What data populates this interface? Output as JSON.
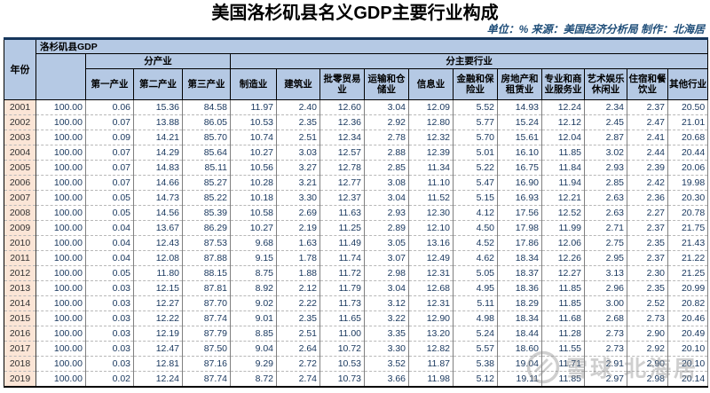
{
  "title": "美国洛杉矶县名义GDP主要行业构成",
  "meta": "单位：% 来源：美国经济分析局 制作：北海居",
  "watermark": {
    "text": "雪球 北海居"
  },
  "colors": {
    "header_bg": "#b5c9e4",
    "year_bg": "#fbe5d6",
    "data_text": "#17365d",
    "meta_text": "#1f4e79"
  },
  "chart_data": {
    "type": "table",
    "title": "美国洛杉矶县名义GDP主要行业构成",
    "unit": "%",
    "source": "美国经济分析局",
    "maker": "北海居",
    "corner_header": "年份",
    "top_group_header": "洛杉矶县GDP",
    "sector_group_header": "分产业",
    "industry_group_header": "分主要行业",
    "sector_columns": [
      "第一产业",
      "第二产业",
      "第三产业"
    ],
    "industry_columns": [
      "制造业",
      "建筑业",
      "批零贸易业",
      "运输和仓储业",
      "信息业",
      "金融和保险业",
      "房地产和租赁业",
      "专业和商业服务业",
      "艺术娱乐休闲业",
      "住宿和餐饮业",
      "其他行业"
    ],
    "rows": [
      {
        "year": "2001",
        "values": [
          "100.00",
          "0.06",
          "15.36",
          "84.58",
          "11.97",
          "2.40",
          "12.60",
          "3.04",
          "12.09",
          "5.52",
          "14.93",
          "12.24",
          "2.34",
          "2.37",
          "20.50"
        ]
      },
      {
        "year": "2002",
        "values": [
          "100.00",
          "0.07",
          "13.88",
          "86.05",
          "10.53",
          "2.35",
          "12.36",
          "2.92",
          "12.80",
          "5.77",
          "15.24",
          "12.12",
          "2.45",
          "2.47",
          "21.01"
        ]
      },
      {
        "year": "2003",
        "values": [
          "100.00",
          "0.09",
          "14.21",
          "85.70",
          "10.74",
          "2.51",
          "12.34",
          "2.78",
          "12.32",
          "5.70",
          "15.61",
          "12.04",
          "2.87",
          "2.41",
          "20.68"
        ]
      },
      {
        "year": "2004",
        "values": [
          "100.00",
          "0.07",
          "14.29",
          "85.64",
          "10.27",
          "3.03",
          "12.57",
          "2.88",
          "12.39",
          "5.01",
          "16.10",
          "11.85",
          "3.02",
          "2.44",
          "20.44"
        ]
      },
      {
        "year": "2005",
        "values": [
          "100.00",
          "0.07",
          "14.83",
          "85.11",
          "10.56",
          "3.27",
          "12.78",
          "2.85",
          "11.34",
          "5.22",
          "16.75",
          "11.84",
          "2.93",
          "2.39",
          "20.06"
        ]
      },
      {
        "year": "2006",
        "values": [
          "100.00",
          "0.07",
          "14.66",
          "85.27",
          "10.28",
          "3.21",
          "12.77",
          "3.08",
          "11.10",
          "5.47",
          "16.90",
          "11.94",
          "2.85",
          "2.42",
          "19.98"
        ]
      },
      {
        "year": "2007",
        "values": [
          "100.00",
          "0.05",
          "14.73",
          "85.22",
          "10.18",
          "3.30",
          "12.37",
          "3.04",
          "11.52",
          "5.15",
          "16.93",
          "12.21",
          "2.63",
          "2.36",
          "20.30"
        ]
      },
      {
        "year": "2008",
        "values": [
          "100.00",
          "0.05",
          "14.56",
          "85.39",
          "10.58",
          "2.69",
          "11.63",
          "2.93",
          "12.30",
          "4.12",
          "17.56",
          "12.52",
          "2.63",
          "2.27",
          "20.78"
        ]
      },
      {
        "year": "2009",
        "values": [
          "100.00",
          "0.04",
          "13.67",
          "86.29",
          "10.27",
          "2.19",
          "11.25",
          "2.89",
          "12.10",
          "4.50",
          "17.98",
          "11.99",
          "2.71",
          "2.37",
          "21.75"
        ]
      },
      {
        "year": "2010",
        "values": [
          "100.00",
          "0.04",
          "12.43",
          "87.53",
          "9.68",
          "1.63",
          "11.49",
          "3.05",
          "13.16",
          "4.52",
          "17.86",
          "12.06",
          "2.75",
          "2.35",
          "21.43"
        ]
      },
      {
        "year": "2011",
        "values": [
          "100.00",
          "0.04",
          "12.08",
          "87.88",
          "9.15",
          "1.78",
          "11.74",
          "3.07",
          "12.49",
          "4.62",
          "18.34",
          "12.26",
          "2.95",
          "2.37",
          "21.22"
        ]
      },
      {
        "year": "2012",
        "values": [
          "100.00",
          "0.05",
          "11.80",
          "88.15",
          "8.75",
          "1.88",
          "11.72",
          "2.98",
          "12.31",
          "5.05",
          "18.37",
          "12.27",
          "3.13",
          "2.30",
          "21.25"
        ]
      },
      {
        "year": "2013",
        "values": [
          "100.00",
          "0.03",
          "12.15",
          "87.81",
          "8.92",
          "2.12",
          "11.79",
          "3.04",
          "12.68",
          "4.95",
          "18.36",
          "11.85",
          "2.96",
          "2.35",
          "20.99"
        ]
      },
      {
        "year": "2014",
        "values": [
          "100.00",
          "0.03",
          "12.27",
          "87.70",
          "9.02",
          "2.22",
          "11.73",
          "3.12",
          "12.31",
          "5.11",
          "18.29",
          "11.85",
          "3.00",
          "2.52",
          "20.82"
        ]
      },
      {
        "year": "2015",
        "values": [
          "100.00",
          "0.03",
          "12.22",
          "87.74",
          "9.01",
          "2.35",
          "11.65",
          "3.22",
          "12.90",
          "4.98",
          "18.34",
          "11.68",
          "2.68",
          "2.73",
          "20.46"
        ]
      },
      {
        "year": "2016",
        "values": [
          "100.00",
          "0.03",
          "12.19",
          "87.79",
          "8.85",
          "2.51",
          "11.00",
          "3.35",
          "13.20",
          "5.24",
          "18.44",
          "11.28",
          "2.73",
          "2.90",
          "20.49"
        ]
      },
      {
        "year": "2017",
        "values": [
          "100.00",
          "0.03",
          "12.47",
          "87.50",
          "9.04",
          "2.64",
          "10.72",
          "3.30",
          "12.82",
          "5.57",
          "18.60",
          "11.55",
          "2.73",
          "2.92",
          "20.10"
        ]
      },
      {
        "year": "2018",
        "values": [
          "100.00",
          "0.03",
          "12.81",
          "87.16",
          "9.29",
          "2.72",
          "10.53",
          "3.52",
          "11.87",
          "5.38",
          "19.04",
          "11.71",
          "2.91",
          "2.90",
          "20.10"
        ]
      },
      {
        "year": "2019",
        "values": [
          "100.00",
          "0.02",
          "12.24",
          "87.74",
          "8.72",
          "2.74",
          "10.73",
          "3.66",
          "11.98",
          "5.12",
          "19.11",
          "11.85",
          "2.97",
          "2.98",
          "20.14"
        ]
      }
    ]
  }
}
